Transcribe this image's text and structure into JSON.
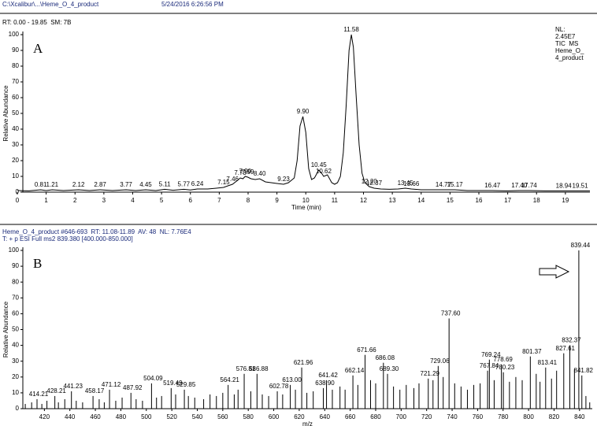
{
  "header": {
    "path": "C:\\Xcalibur\\...\\Heme_O_4_product",
    "datetime": "5/24/2016 6:26:56 PM"
  },
  "chart_data": [
    {
      "type": "line",
      "panel_label": "A",
      "header_lines": [
        "RT: 0.00 - 19.85  SM: 7B"
      ],
      "info": [
        "NL:",
        "2.45E7",
        "TIC  MS",
        "Heme_O_",
        "4_product"
      ],
      "x_label": "Time (min)",
      "y_label": "Relative Abundance",
      "color": "#000000",
      "x": [
        0,
        0.4,
        0.81,
        1.0,
        1.21,
        1.6,
        2.12,
        2.5,
        2.87,
        3.3,
        3.77,
        4.1,
        4.45,
        4.8,
        5.11,
        5.4,
        5.77,
        6.0,
        6.24,
        6.6,
        6.9,
        7.15,
        7.3,
        7.46,
        7.6,
        7.73,
        7.82,
        7.9,
        7.99,
        8.1,
        8.25,
        8.4,
        8.6,
        8.8,
        9.0,
        9.23,
        9.4,
        9.6,
        9.7,
        9.8,
        9.9,
        10.0,
        10.1,
        10.2,
        10.3,
        10.45,
        10.55,
        10.62,
        10.75,
        10.9,
        11.0,
        11.1,
        11.2,
        11.3,
        11.4,
        11.5,
        11.58,
        11.65,
        11.75,
        11.85,
        11.95,
        12.05,
        12.2,
        12.37,
        12.6,
        12.9,
        13.2,
        13.45,
        13.66,
        14.0,
        14.4,
        14.77,
        15.17,
        15.6,
        16.0,
        16.47,
        17.0,
        17.4,
        17.74,
        18.3,
        18.94,
        19.51,
        19.85
      ],
      "values": [
        1,
        0.8,
        1.5,
        1,
        1.5,
        1,
        1.5,
        1,
        1.5,
        1,
        1.5,
        1,
        1.5,
        1,
        1.8,
        1.2,
        1.8,
        1.4,
        2,
        2,
        2.5,
        3,
        4,
        5,
        7,
        9,
        8.5,
        10,
        9.5,
        8.5,
        8,
        8.5,
        6.5,
        6,
        5.5,
        5,
        6,
        9,
        20,
        42,
        48,
        38,
        15,
        8,
        9,
        14,
        12,
        10,
        11,
        6,
        5,
        6,
        10,
        25,
        55,
        90,
        100,
        92,
        60,
        30,
        12,
        6,
        3.5,
        2.5,
        2,
        1.8,
        2,
        2.5,
        2,
        1.5,
        1.5,
        1.5,
        1.5,
        1,
        1,
        1,
        0.8,
        1,
        1,
        0.8,
        0.8,
        0.8,
        0.8
      ],
      "annotations": [
        {
          "x": 0.81,
          "y": 1.5,
          "label": "0.81"
        },
        {
          "x": 1.21,
          "y": 1.5,
          "label": "1.21"
        },
        {
          "x": 2.12,
          "y": 1.5,
          "label": "2.12"
        },
        {
          "x": 2.87,
          "y": 1.5,
          "label": "2.87"
        },
        {
          "x": 3.77,
          "y": 1.5,
          "label": "3.77"
        },
        {
          "x": 4.45,
          "y": 1.5,
          "label": "4.45"
        },
        {
          "x": 5.11,
          "y": 1.8,
          "label": "5.11"
        },
        {
          "x": 5.77,
          "y": 1.8,
          "label": "5.77"
        },
        {
          "x": 6.24,
          "y": 2,
          "label": "6.24"
        },
        {
          "x": 7.15,
          "y": 3,
          "label": "7.15"
        },
        {
          "x": 7.46,
          "y": 5,
          "label": "7.46"
        },
        {
          "x": 7.73,
          "y": 9,
          "label": "7.73"
        },
        {
          "x": 7.9,
          "y": 10,
          "label": "7.90"
        },
        {
          "x": 7.99,
          "y": 9.5,
          "label": "7.99"
        },
        {
          "x": 8.4,
          "y": 8.5,
          "label": "8.40"
        },
        {
          "x": 9.23,
          "y": 5,
          "label": "9.23"
        },
        {
          "x": 9.9,
          "y": 48,
          "label": "9.90"
        },
        {
          "x": 10.45,
          "y": 14,
          "label": "10.45"
        },
        {
          "x": 10.62,
          "y": 10,
          "label": "10.62"
        },
        {
          "x": 11.58,
          "y": 100,
          "label": "11.58"
        },
        {
          "x": 12.2,
          "y": 3.5,
          "label": "12.20"
        },
        {
          "x": 12.37,
          "y": 2.5,
          "label": "12.37"
        },
        {
          "x": 13.45,
          "y": 2.5,
          "label": "13.45"
        },
        {
          "x": 13.66,
          "y": 2,
          "label": "13.66"
        },
        {
          "x": 14.77,
          "y": 1.5,
          "label": "14.77"
        },
        {
          "x": 15.17,
          "y": 1.5,
          "label": "15.17"
        },
        {
          "x": 16.47,
          "y": 1,
          "label": "16.47"
        },
        {
          "x": 17.4,
          "y": 1,
          "label": "17.40"
        },
        {
          "x": 17.74,
          "y": 1,
          "label": "17.74"
        },
        {
          "x": 18.94,
          "y": 0.8,
          "label": "18.94"
        },
        {
          "x": 19.51,
          "y": 0.8,
          "label": "19.51"
        }
      ],
      "xlim": [
        0,
        19.85
      ],
      "xticks": [
        0,
        1,
        2,
        3,
        4,
        5,
        6,
        7,
        8,
        9,
        10,
        11,
        12,
        13,
        14,
        15,
        16,
        17,
        18,
        19
      ],
      "ylim": [
        0,
        100
      ],
      "yticks": [
        0,
        10,
        20,
        30,
        40,
        50,
        60,
        70,
        80,
        90,
        100
      ]
    },
    {
      "type": "stem",
      "panel_label": "B",
      "header_lines": [
        "Heme_O_4_product #646-693  RT: 11.08-11.89  AV: 48  NL: 7.76E4",
        "T: + p ESI Full ms2 839.380 [400.000-850.000]"
      ],
      "x_label": "m/z",
      "y_label": "Relative Abundance",
      "color": "#000000",
      "x": [
        405,
        410,
        414.21,
        418,
        422,
        428.21,
        431,
        436,
        441.23,
        445,
        450,
        458.17,
        463,
        467,
        471.12,
        476,
        481,
        487.92,
        492,
        497,
        504.09,
        508,
        512,
        519.49,
        523,
        529.85,
        533,
        538,
        545,
        550,
        555,
        560,
        564.21,
        569,
        572,
        576.81,
        582,
        586.88,
        591,
        596,
        602.78,
        607,
        613,
        617,
        621.96,
        626,
        631,
        638.9,
        641.42,
        646,
        652,
        656,
        662.14,
        666,
        671.66,
        676,
        680,
        686.08,
        689.3,
        694,
        699,
        704,
        710,
        714,
        721.29,
        725,
        729.06,
        733,
        737.6,
        742,
        747,
        752,
        757,
        762,
        767.84,
        769.24,
        773,
        778.69,
        780.23,
        785,
        790,
        795,
        801.37,
        806,
        809,
        813.41,
        818,
        822,
        827.61,
        832.37,
        836,
        839.44,
        841.82,
        845,
        848
      ],
      "x_labels": [
        null,
        null,
        "414.21",
        null,
        null,
        "428.21",
        null,
        null,
        "441.23",
        null,
        null,
        "458.17",
        null,
        null,
        "471.12",
        null,
        null,
        "487.92",
        null,
        null,
        "504.09",
        null,
        null,
        "519.49",
        null,
        "529.85",
        null,
        null,
        null,
        null,
        null,
        null,
        "564.21",
        null,
        null,
        "576.81",
        null,
        "586.88",
        null,
        null,
        "602.78",
        null,
        "613.00",
        null,
        "621.96",
        null,
        null,
        "638.90",
        "641.42",
        null,
        null,
        null,
        "662.14",
        null,
        "671.66",
        null,
        null,
        "686.08",
        "689.30",
        null,
        null,
        null,
        null,
        null,
        "721.29",
        null,
        "729.06",
        null,
        "737.60",
        null,
        null,
        null,
        null,
        null,
        "767.84",
        "769.24",
        null,
        "778.69",
        "780.23",
        null,
        null,
        null,
        "801.37",
        null,
        null,
        "813.41",
        null,
        null,
        "827.61",
        "832.37",
        null,
        "839.44",
        "841.82",
        null,
        null
      ],
      "values": [
        3,
        4,
        6,
        3,
        5,
        8,
        4,
        6,
        11,
        5,
        4,
        8,
        6,
        4,
        12,
        5,
        7,
        10,
        6,
        5,
        16,
        7,
        8,
        13,
        9,
        12,
        8,
        7,
        6,
        9,
        8,
        10,
        15,
        9,
        12,
        22,
        11,
        22,
        9,
        8,
        11,
        9,
        15,
        12,
        26,
        10,
        11,
        13,
        18,
        12,
        14,
        12,
        21,
        15,
        34,
        18,
        16,
        29,
        22,
        14,
        12,
        15,
        13,
        16,
        19,
        18,
        27,
        20,
        57,
        16,
        14,
        12,
        15,
        16,
        24,
        31,
        18,
        28,
        23,
        17,
        20,
        18,
        33,
        22,
        17,
        26,
        19,
        24,
        35,
        40,
        25,
        100,
        21,
        8,
        4
      ],
      "xlim": [
        400,
        850
      ],
      "xticks": [
        420,
        440,
        460,
        480,
        500,
        520,
        540,
        560,
        580,
        600,
        620,
        640,
        660,
        680,
        700,
        720,
        740,
        760,
        780,
        800,
        820,
        840
      ],
      "ylim": [
        0,
        100
      ],
      "yticks": [
        0,
        10,
        20,
        30,
        40,
        50,
        60,
        70,
        80,
        90,
        100
      ]
    }
  ]
}
